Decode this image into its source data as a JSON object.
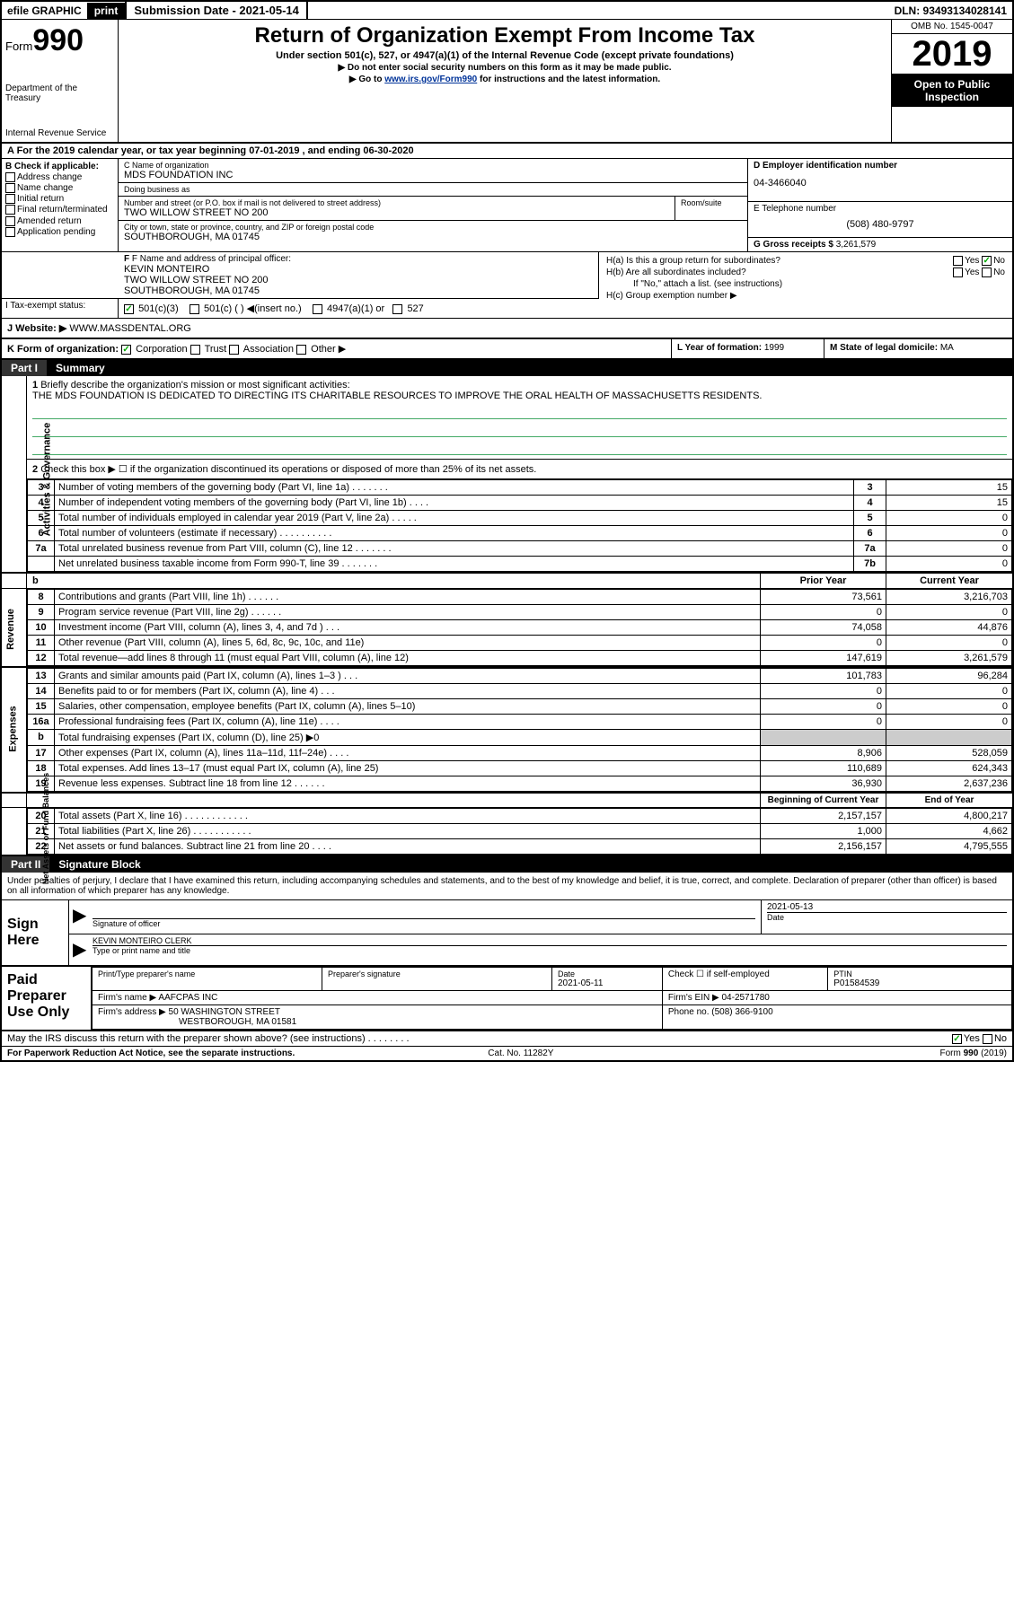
{
  "topbar": {
    "efile": "efile GRAPHIC",
    "print": "print",
    "subdate_label": "Submission Date - ",
    "subdate": "2021-05-14",
    "dln": "DLN: 93493134028141"
  },
  "header": {
    "form_prefix": "Form",
    "form_num": "990",
    "dept": "Department of the Treasury",
    "irs": "Internal Revenue Service",
    "title": "Return of Organization Exempt From Income Tax",
    "sub1": "Under section 501(c), 527, or 4947(a)(1) of the Internal Revenue Code (except private foundations)",
    "sub2": "▶ Do not enter social security numbers on this form as it may be made public.",
    "sub3_pre": "▶ Go to ",
    "sub3_link": "www.irs.gov/Form990",
    "sub3_post": " for instructions and the latest information.",
    "omb": "OMB No. 1545-0047",
    "year": "2019",
    "open": "Open to Public Inspection"
  },
  "row_a": "A For the 2019 calendar year, or tax year beginning 07-01-2019   , and ending 06-30-2020",
  "check_b": {
    "label": "B Check if applicable:",
    "items": [
      "Address change",
      "Name change",
      "Initial return",
      "Final return/terminated",
      "Amended return",
      "Application pending"
    ]
  },
  "org": {
    "name_lbl": "C Name of organization",
    "name": "MDS FOUNDATION INC",
    "dba_lbl": "Doing business as",
    "dba": "",
    "street_lbl": "Number and street (or P.O. box if mail is not delivered to street address)",
    "street": "TWO WILLOW STREET NO 200",
    "suite_lbl": "Room/suite",
    "city_lbl": "City or town, state or province, country, and ZIP or foreign postal code",
    "city": "SOUTHBOROUGH, MA  01745"
  },
  "ein": {
    "lbl": "D Employer identification number",
    "val": "04-3466040"
  },
  "phone": {
    "lbl": "E Telephone number",
    "val": "(508) 480-9797"
  },
  "gross": {
    "lbl": "G Gross receipts $ ",
    "val": "3,261,579"
  },
  "officer": {
    "lbl": "F Name and address of principal officer:",
    "name": "KEVIN MONTEIRO",
    "street": "TWO WILLOW STREET NO 200",
    "city": "SOUTHBOROUGH, MA  01745"
  },
  "h": {
    "a": "H(a)  Is this a group return for subordinates?",
    "b": "H(b)  Are all subordinates included?",
    "bnote": "If \"No,\" attach a list. (see instructions)",
    "c": "H(c)  Group exemption number ▶",
    "yes": "Yes",
    "no": "No"
  },
  "tax_exempt": {
    "lbl": "I   Tax-exempt status:",
    "opts": [
      "501(c)(3)",
      "501(c) (  ) ◀(insert no.)",
      "4947(a)(1) or",
      "527"
    ]
  },
  "website": {
    "lbl": "J   Website: ▶",
    "val": "WWW.MASSDENTAL.ORG"
  },
  "k": {
    "lbl": "K Form of organization:",
    "opts": [
      "Corporation",
      "Trust",
      "Association",
      "Other ▶"
    ]
  },
  "l": {
    "lbl": "L Year of formation: ",
    "val": "1999"
  },
  "m": {
    "lbl": "M State of legal domicile: ",
    "val": "MA"
  },
  "part1": {
    "num": "Part I",
    "title": "Summary"
  },
  "mission": {
    "num": "1",
    "lbl": "Briefly describe the organization's mission or most significant activities:",
    "text": "THE MDS FOUNDATION IS DEDICATED TO DIRECTING ITS CHARITABLE RESOURCES TO IMPROVE THE ORAL HEALTH OF MASSACHUSETTS RESIDENTS."
  },
  "line2": "Check this box ▶ ☐ if the organization discontinued its operations or disposed of more than 25% of its net assets.",
  "gov_rows": [
    {
      "n": "3",
      "d": "Number of voting members of the governing body (Part VI, line 1a)  .    .    .    .    .    .    .",
      "b": "3",
      "v": "15"
    },
    {
      "n": "4",
      "d": "Number of independent voting members of the governing body (Part VI, line 1b)  .   .   .   .",
      "b": "4",
      "v": "15"
    },
    {
      "n": "5",
      "d": "Total number of individuals employed in calendar year 2019 (Part V, line 2a)  .   .   .   .   .",
      "b": "5",
      "v": "0"
    },
    {
      "n": "6",
      "d": "Total number of volunteers (estimate if necessary)   .    .    .    .    .    .    .    .    .    .",
      "b": "6",
      "v": "0"
    },
    {
      "n": "7a",
      "d": "Total unrelated business revenue from Part VIII, column (C), line 12  .   .   .   .   .   .   .",
      "b": "7a",
      "v": "0"
    },
    {
      "n": "",
      "d": "Net unrelated business taxable income from Form 990-T, line 39   .    .    .    .    .    .    .",
      "b": "7b",
      "v": "0"
    }
  ],
  "prior_hdr": "Prior Year",
  "current_hdr": "Current Year",
  "rev_rows": [
    {
      "n": "8",
      "d": "Contributions and grants (Part VIII, line 1h)   .    .    .    .    .    .",
      "p": "73,561",
      "c": "3,216,703"
    },
    {
      "n": "9",
      "d": "Program service revenue (Part VIII, line 2g)  .    .    .    .    .    .",
      "p": "0",
      "c": "0"
    },
    {
      "n": "10",
      "d": "Investment income (Part VIII, column (A), lines 3, 4, and 7d )  .   .   .",
      "p": "74,058",
      "c": "44,876"
    },
    {
      "n": "11",
      "d": "Other revenue (Part VIII, column (A), lines 5, 6d, 8c, 9c, 10c, and 11e)",
      "p": "0",
      "c": "0"
    },
    {
      "n": "12",
      "d": "Total revenue—add lines 8 through 11 (must equal Part VIII, column (A), line 12)",
      "p": "147,619",
      "c": "3,261,579"
    }
  ],
  "exp_rows": [
    {
      "n": "13",
      "d": "Grants and similar amounts paid (Part IX, column (A), lines 1–3 )  .   .   .",
      "p": "101,783",
      "c": "96,284"
    },
    {
      "n": "14",
      "d": "Benefits paid to or for members (Part IX, column (A), line 4)  .   .   .",
      "p": "0",
      "c": "0"
    },
    {
      "n": "15",
      "d": "Salaries, other compensation, employee benefits (Part IX, column (A), lines 5–10)",
      "p": "0",
      "c": "0"
    },
    {
      "n": "16a",
      "d": "Professional fundraising fees (Part IX, column (A), line 11e)  .   .   .   .",
      "p": "0",
      "c": "0"
    },
    {
      "n": "b",
      "d": "Total fundraising expenses (Part IX, column (D), line 25) ▶0",
      "p": "",
      "c": ""
    },
    {
      "n": "17",
      "d": "Other expenses (Part IX, column (A), lines 11a–11d, 11f–24e)  .   .   .   .",
      "p": "8,906",
      "c": "528,059"
    },
    {
      "n": "18",
      "d": "Total expenses. Add lines 13–17 (must equal Part IX, column (A), line 25)",
      "p": "110,689",
      "c": "624,343"
    },
    {
      "n": "19",
      "d": "Revenue less expenses. Subtract line 18 from line 12  .   .   .   .   .   .",
      "p": "36,930",
      "c": "2,637,236"
    }
  ],
  "begin_hdr": "Beginning of Current Year",
  "end_hdr": "End of Year",
  "net_rows": [
    {
      "n": "20",
      "d": "Total assets (Part X, line 16)  .   .   .   .   .   .   .   .   .   .   .   .",
      "p": "2,157,157",
      "c": "4,800,217"
    },
    {
      "n": "21",
      "d": "Total liabilities (Part X, line 26)  .   .   .   .   .   .   .   .   .   .   .",
      "p": "1,000",
      "c": "4,662"
    },
    {
      "n": "22",
      "d": "Net assets or fund balances. Subtract line 21 from line 20  .   .   .   .",
      "p": "2,156,157",
      "c": "4,795,555"
    }
  ],
  "part2": {
    "num": "Part II",
    "title": "Signature Block"
  },
  "penalty": "Under penalties of perjury, I declare that I have examined this return, including accompanying schedules and statements, and to the best of my knowledge and belief, it is true, correct, and complete. Declaration of preparer (other than officer) is based on all information of which preparer has any knowledge.",
  "sign": {
    "here": "Sign Here",
    "sig_lbl": "Signature of officer",
    "date": "2021-05-13",
    "date_lbl": "Date",
    "name": "KEVIN MONTEIRO  CLERK",
    "name_lbl": "Type or print name and title"
  },
  "preparer": {
    "lbl": "Paid Preparer Use Only",
    "name_lbl": "Print/Type preparer's name",
    "sig_lbl": "Preparer's signature",
    "date_lbl": "Date",
    "date": "2021-05-11",
    "check_lbl": "Check ☐ if self-employed",
    "ptin_lbl": "PTIN",
    "ptin": "P01584539",
    "firm_lbl": "Firm's name    ▶",
    "firm": "AAFCPAS INC",
    "ein_lbl": "Firm's EIN ▶",
    "ein": "04-2571780",
    "addr_lbl": "Firm's address ▶",
    "addr1": "50 WASHINGTON STREET",
    "addr2": "WESTBOROUGH, MA  01581",
    "phone_lbl": "Phone no. ",
    "phone": "(508) 366-9100"
  },
  "discuss": "May the IRS discuss this return with the preparer shown above? (see instructions)  .   .   .   .   .   .   .   .",
  "footer": {
    "paperwork": "For Paperwork Reduction Act Notice, see the separate instructions.",
    "cat": "Cat. No. 11282Y",
    "form": "Form 990 (2019)"
  },
  "vlabels": {
    "gov": "Activities & Governance",
    "rev": "Revenue",
    "exp": "Expenses",
    "net": "Net Assets or Fund Balances"
  }
}
